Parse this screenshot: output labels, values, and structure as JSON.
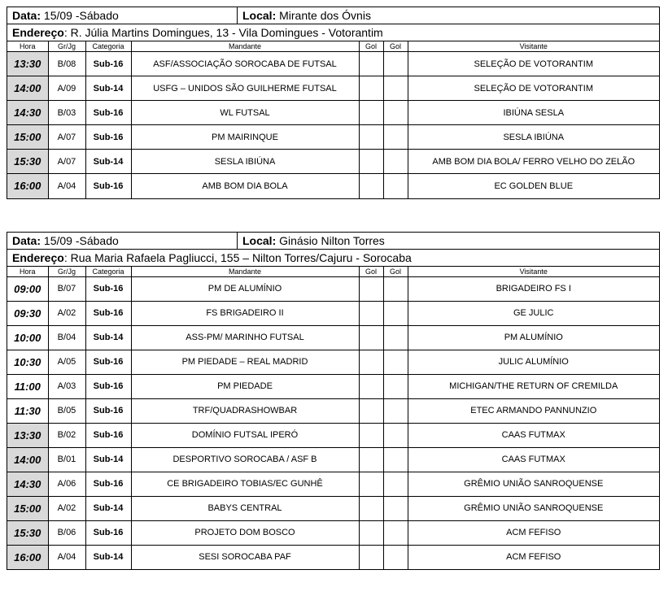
{
  "labels": {
    "data": "Data:",
    "local": "Local:",
    "endereco": "Endereço",
    "hora": "Hora",
    "grjg": "Gr/Jg",
    "categoria": "Categoria",
    "mandante": "Mandante",
    "gol": "Gol",
    "visitante": "Visitante"
  },
  "colors": {
    "shade": "#d9d9d9",
    "border": "#000000",
    "bg": "#ffffff"
  },
  "blocks": [
    {
      "data": "15/09 -Sábado",
      "local": "Mirante dos Óvnis",
      "endereco": "R. Júlia Martins Domingues, 13 - Vila Domingues - Votorantim",
      "rows": [
        {
          "hora": "13:30",
          "grjg": "B/08",
          "cat": "Sub-16",
          "mand": "ASF/ASSOCIAÇÃO SOROCABA DE FUTSAL",
          "g1": "",
          "g2": "",
          "vis": "SELEÇÃO DE VOTORANTIM",
          "shade": true
        },
        {
          "hora": "14:00",
          "grjg": "A/09",
          "cat": "Sub-14",
          "mand": "USFG – UNIDOS SÃO GUILHERME FUTSAL",
          "g1": "",
          "g2": "",
          "vis": "SELEÇÃO DE VOTORANTIM",
          "shade": true
        },
        {
          "hora": "14:30",
          "grjg": "B/03",
          "cat": "Sub-16",
          "mand": "WL FUTSAL",
          "g1": "",
          "g2": "",
          "vis": "IBIÚNA SESLA",
          "shade": true
        },
        {
          "hora": "15:00",
          "grjg": "A/07",
          "cat": "Sub-16",
          "mand": "PM MAIRINQUE",
          "g1": "",
          "g2": "",
          "vis": "SESLA IBIÚNA",
          "shade": true
        },
        {
          "hora": "15:30",
          "grjg": "A/07",
          "cat": "Sub-14",
          "mand": "SESLA IBIÚNA",
          "g1": "",
          "g2": "",
          "vis": "AMB BOM DIA BOLA/ FERRO VELHO DO ZELÃO",
          "shade": true
        },
        {
          "hora": "16:00",
          "grjg": "A/04",
          "cat": "Sub-16",
          "mand": "AMB BOM DIA BOLA",
          "g1": "",
          "g2": "",
          "vis": "EC GOLDEN BLUE",
          "shade": true
        }
      ]
    },
    {
      "data": "15/09 -Sábado",
      "local": "Ginásio Nilton Torres",
      "endereco": "Rua Maria Rafaela Pagliucci, 155 – Nilton Torres/Cajuru - Sorocaba",
      "rows": [
        {
          "hora": "09:00",
          "grjg": "B/07",
          "cat": "Sub-16",
          "mand": "PM DE ALUMÍNIO",
          "g1": "",
          "g2": "",
          "vis": "BRIGADEIRO FS I",
          "shade": false
        },
        {
          "hora": "09:30",
          "grjg": "A/02",
          "cat": "Sub-16",
          "mand": "FS  BRIGADEIRO II",
          "g1": "",
          "g2": "",
          "vis": "GE JULIC",
          "shade": false
        },
        {
          "hora": "10:00",
          "grjg": "B/04",
          "cat": "Sub-14",
          "mand": "ASS-PM/ MARINHO FUTSAL",
          "g1": "",
          "g2": "",
          "vis": "PM ALUMÍNIO",
          "shade": false
        },
        {
          "hora": "10:30",
          "grjg": "A/05",
          "cat": "Sub-16",
          "mand": "PM PIEDADE – REAL MADRID",
          "g1": "",
          "g2": "",
          "vis": "JULIC ALUMÍNIO",
          "shade": false
        },
        {
          "hora": "11:00",
          "grjg": "A/03",
          "cat": "Sub-16",
          "mand": "PM PIEDADE",
          "g1": "",
          "g2": "",
          "vis": "MICHIGAN/THE RETURN OF CREMILDA",
          "shade": false
        },
        {
          "hora": "11:30",
          "grjg": "B/05",
          "cat": "Sub-16",
          "mand": "TRF/QUADRASHOWBAR",
          "g1": "",
          "g2": "",
          "vis": "ETEC ARMANDO PANNUNZIO",
          "shade": false
        },
        {
          "hora": "13:30",
          "grjg": "B/02",
          "cat": "Sub-16",
          "mand": "DOMÍNIO FUTSAL IPERÓ",
          "g1": "",
          "g2": "",
          "vis": "CAAS FUTMAX",
          "shade": true
        },
        {
          "hora": "14:00",
          "grjg": "B/01",
          "cat": "Sub-14",
          "mand": "DESPORTIVO SOROCABA / ASF B",
          "g1": "",
          "g2": "",
          "vis": "CAAS FUTMAX",
          "shade": true
        },
        {
          "hora": "14:30",
          "grjg": "A/06",
          "cat": "Sub-16",
          "mand": "CE BRIGADEIRO TOBIAS/EC GUNHÊ",
          "g1": "",
          "g2": "",
          "vis": "GRÊMIO UNIÃO SANROQUENSE",
          "shade": true
        },
        {
          "hora": "15:00",
          "grjg": "A/02",
          "cat": "Sub-14",
          "mand": "BABYS CENTRAL",
          "g1": "",
          "g2": "",
          "vis": "GRÊMIO UNIÃO SANROQUENSE",
          "shade": true
        },
        {
          "hora": "15:30",
          "grjg": "B/06",
          "cat": "Sub-16",
          "mand": "PROJETO DOM BOSCO",
          "g1": "",
          "g2": "",
          "vis": "ACM FEFISO",
          "shade": true
        },
        {
          "hora": "16:00",
          "grjg": "A/04",
          "cat": "Sub-14",
          "mand": "SESI SOROCABA PAF",
          "g1": "",
          "g2": "",
          "vis": "ACM FEFISO",
          "shade": true
        }
      ]
    }
  ]
}
